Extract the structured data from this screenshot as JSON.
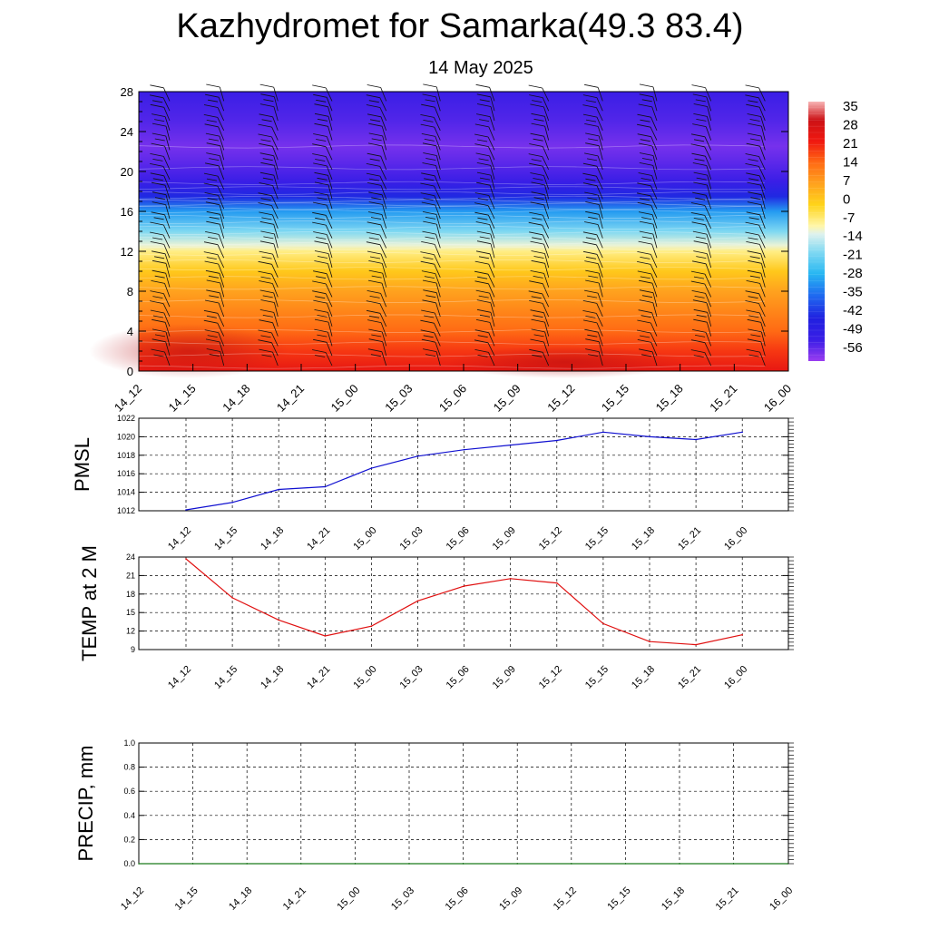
{
  "header": {
    "title": "Kazhydromet for Samarka(49.3 83.4)",
    "subtitle": "14 May 2025"
  },
  "chart_data": [
    {
      "type": "heatmap",
      "title": "",
      "x_categories": [
        "14_12",
        "14_15",
        "14_18",
        "14_21",
        "15_00",
        "15_03",
        "15_06",
        "15_09",
        "15_12",
        "15_15",
        "15_18",
        "15_21",
        "16_00"
      ],
      "yticks": [
        0,
        4,
        8,
        12,
        16,
        20,
        24,
        28
      ],
      "ylim": [
        0,
        28
      ],
      "color_scale": {
        "labels": [
          "35",
          "28",
          "21",
          "14",
          "7",
          "0",
          "-7",
          "-14",
          "-21",
          "-28",
          "-35",
          "-42",
          "-49",
          "-56"
        ],
        "stops": [
          {
            "v": -63,
            "color": "#9a3cf0"
          },
          {
            "v": -55,
            "color": "#3a1ee6"
          },
          {
            "v": -47,
            "color": "#2020e0"
          },
          {
            "v": -38,
            "color": "#1f6cf0"
          },
          {
            "v": -30,
            "color": "#27b7f2"
          },
          {
            "v": -22,
            "color": "#7ed8f2"
          },
          {
            "v": -15,
            "color": "#dff2ee"
          },
          {
            "v": -12,
            "color": "#fff6a8"
          },
          {
            "v": -4,
            "color": "#ffd41a"
          },
          {
            "v": 4,
            "color": "#ffa21e"
          },
          {
            "v": 12,
            "color": "#ff6a14"
          },
          {
            "v": 20,
            "color": "#f01810"
          },
          {
            "v": 28,
            "color": "#cc1216"
          },
          {
            "v": 35,
            "color": "#f7b5b5"
          }
        ]
      },
      "temperature_profile": [
        {
          "h": 0,
          "t": 22
        },
        {
          "h": 2,
          "t": 17
        },
        {
          "h": 4,
          "t": 12
        },
        {
          "h": 6,
          "t": 8
        },
        {
          "h": 8,
          "t": 4
        },
        {
          "h": 10,
          "t": -2
        },
        {
          "h": 12,
          "t": -10
        },
        {
          "h": 12.6,
          "t": -14
        },
        {
          "h": 14,
          "t": -22
        },
        {
          "h": 16,
          "t": -33
        },
        {
          "h": 17.5,
          "t": -46
        },
        {
          "h": 19,
          "t": -55
        },
        {
          "h": 21,
          "t": -58
        },
        {
          "h": 22.5,
          "t": -60
        },
        {
          "h": 25,
          "t": -57
        },
        {
          "h": 28,
          "t": -55
        }
      ],
      "grid": false
    },
    {
      "type": "line",
      "ylabel": "PMSL",
      "x": [
        "14_12",
        "14_15",
        "14_18",
        "14_21",
        "15_00",
        "15_03",
        "15_06",
        "15_09",
        "15_12",
        "15_15",
        "15_18",
        "15_21",
        "16_00"
      ],
      "series": [
        {
          "values": [
            1012.1,
            1012.9,
            1014.3,
            1014.6,
            1016.6,
            1017.9,
            1018.6,
            1019.1,
            1019.6,
            1020.5,
            1020.0,
            1019.7,
            1020.5
          ],
          "color": "#1010d0"
        }
      ],
      "yticks": [
        1012,
        1014,
        1016,
        1018,
        1020,
        1022
      ],
      "ylim": [
        1012,
        1022
      ],
      "grid": true
    },
    {
      "type": "line",
      "ylabel": "TEMP at 2 M",
      "x": [
        "14_12",
        "14_15",
        "14_18",
        "14_21",
        "15_00",
        "15_03",
        "15_06",
        "15_09",
        "15_12",
        "15_15",
        "15_18",
        "15_21",
        "16_00"
      ],
      "series": [
        {
          "values": [
            23.7,
            17.4,
            13.8,
            11.2,
            12.8,
            16.9,
            19.3,
            20.5,
            19.8,
            13.2,
            10.3,
            9.8,
            11.4
          ],
          "color": "#e01010"
        }
      ],
      "yticks": [
        9,
        12,
        15,
        18,
        21,
        24
      ],
      "ylim": [
        9,
        24
      ],
      "grid": true
    },
    {
      "type": "line",
      "ylabel": "PRECIP, mm",
      "x": [
        "14_12",
        "14_15",
        "14_18",
        "14_21",
        "15_00",
        "15_03",
        "15_06",
        "15_09",
        "15_12",
        "15_15",
        "15_18",
        "15_21",
        "16_00"
      ],
      "series": [
        {
          "values": [
            0,
            0,
            0,
            0,
            0,
            0,
            0,
            0,
            0,
            0,
            0,
            0,
            0
          ],
          "color": "#1a7a1a"
        }
      ],
      "yticks": [
        "0.0",
        "0.2",
        "0.4",
        "0.6",
        "0.8",
        "1.0"
      ],
      "ylim": [
        0,
        1
      ],
      "grid": true
    }
  ]
}
